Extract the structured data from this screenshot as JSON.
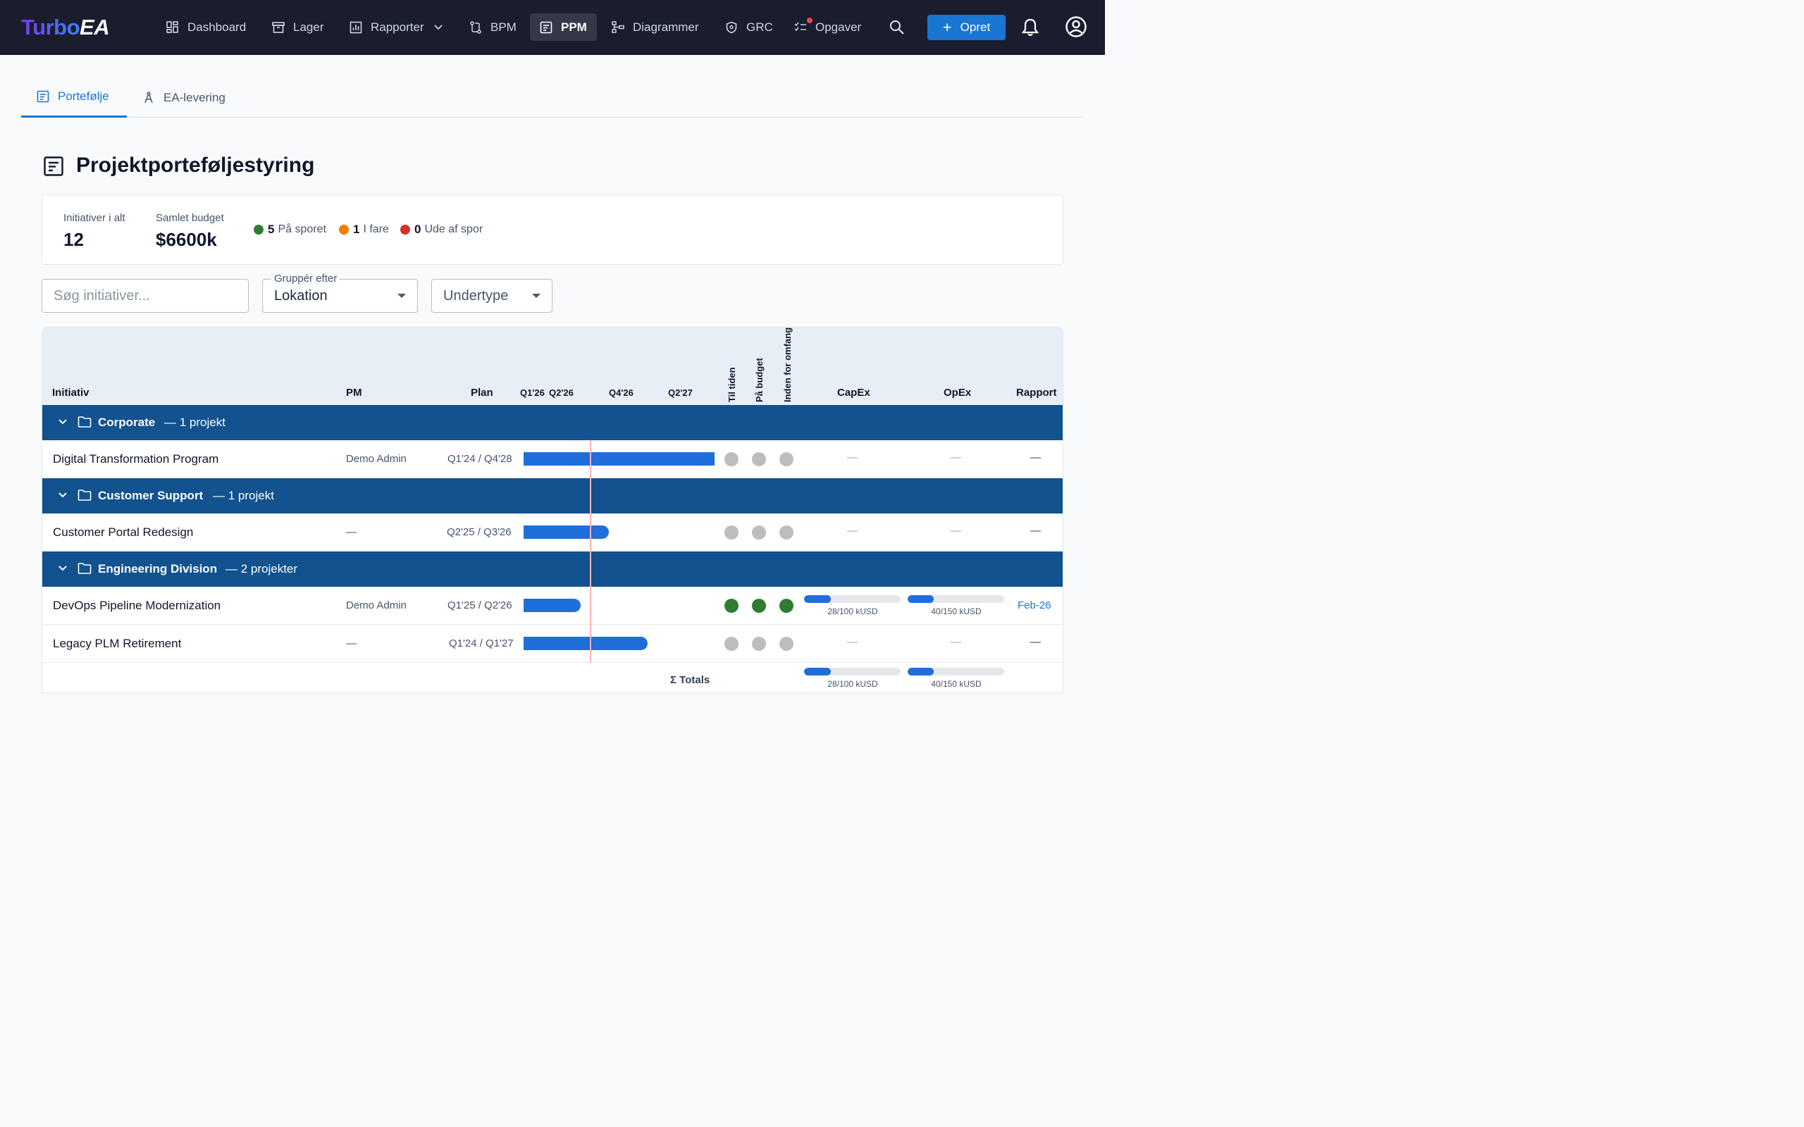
{
  "nav": {
    "logo_turbo": "Turbo",
    "logo_ea": "EA",
    "items": [
      {
        "label": "Dashboard",
        "icon": "dashboard-icon"
      },
      {
        "label": "Lager",
        "icon": "archive-icon"
      },
      {
        "label": "Rapporter",
        "icon": "report-icon",
        "has_dropdown": true
      },
      {
        "label": "BPM",
        "icon": "process-icon"
      },
      {
        "label": "PPM",
        "icon": "portfolio-icon",
        "active": true
      },
      {
        "label": "Diagrammer",
        "icon": "diagram-icon"
      },
      {
        "label": "GRC",
        "icon": "shield-icon"
      },
      {
        "label": "Opgaver",
        "icon": "tasks-icon",
        "badge": true
      }
    ],
    "create_label": "Opret"
  },
  "tabs": [
    {
      "label": "Portefølje",
      "active": true
    },
    {
      "label": "EA-levering",
      "active": false
    }
  ],
  "page": {
    "title": "Projektporteføljestyring"
  },
  "summary": {
    "total_label": "Initiativer i alt",
    "total_value": "12",
    "budget_label": "Samlet budget",
    "budget_value": "$6600k",
    "on_track_count": "5",
    "on_track_label": "På sporet",
    "at_risk_count": "1",
    "at_risk_label": "I fare",
    "off_track_count": "0",
    "off_track_label": "Ude af spor",
    "colors": {
      "on_track": "#2e7d32",
      "at_risk": "#f57c00",
      "off_track": "#d32f2f"
    }
  },
  "filters": {
    "search_placeholder": "Søg initiativer...",
    "group_label": "Gruppér efter",
    "group_value": "Lokation",
    "subtype_value": "Undertype"
  },
  "table": {
    "headers": {
      "initiative": "Initiativ",
      "pm": "PM",
      "plan": "Plan",
      "on_time": "Til tiden",
      "on_budget": "På budget",
      "in_scope": "Inden for omfang",
      "capex": "CapEx",
      "opex": "OpEx",
      "report": "Rapport"
    },
    "quarters": [
      "Q1'26",
      "Q2'26",
      "Q4'26",
      "Q2'27"
    ],
    "groups": [
      {
        "name": "Corporate",
        "count": "— 1 projekt"
      },
      {
        "name": "Customer Support",
        "count": "— 1 projekt"
      },
      {
        "name": "Engineering Division",
        "count": "— 2 projekter"
      }
    ],
    "rows": [
      {
        "name": "Digital Transformation Program",
        "pm": "Demo Admin",
        "plan": "Q1'24 / Q4'28",
        "statuses": [
          "grey",
          "grey",
          "grey"
        ],
        "capex": "—",
        "opex": "—",
        "report": "—"
      },
      {
        "name": "Customer Portal Redesign",
        "pm": "—",
        "plan": "Q2'25 / Q3'26",
        "statuses": [
          "grey",
          "grey",
          "grey"
        ],
        "capex": "—",
        "opex": "—",
        "report": "—"
      },
      {
        "name": "DevOps Pipeline Modernization",
        "pm": "Demo Admin",
        "plan": "Q1'25 / Q2'26",
        "statuses": [
          "green",
          "green",
          "green"
        ],
        "capex": "28/100 kUSD",
        "capex_fraction": 0.28,
        "opex": "40/150 kUSD",
        "opex_fraction": 0.267,
        "report": "Feb-26"
      },
      {
        "name": "Legacy PLM Retirement",
        "pm": "—",
        "plan": "Q1'24 / Q1'27",
        "statuses": [
          "grey",
          "grey",
          "grey"
        ],
        "capex": "—",
        "opex": "—",
        "report": "—"
      }
    ],
    "totals": {
      "label": "Σ Totals",
      "capex": "28/100 kUSD",
      "capex_fraction": 0.28,
      "opex": "40/150 kUSD",
      "opex_fraction": 0.267
    },
    "status_colors": {
      "green": "#2e7d32",
      "grey": "#bdbdbd"
    }
  }
}
